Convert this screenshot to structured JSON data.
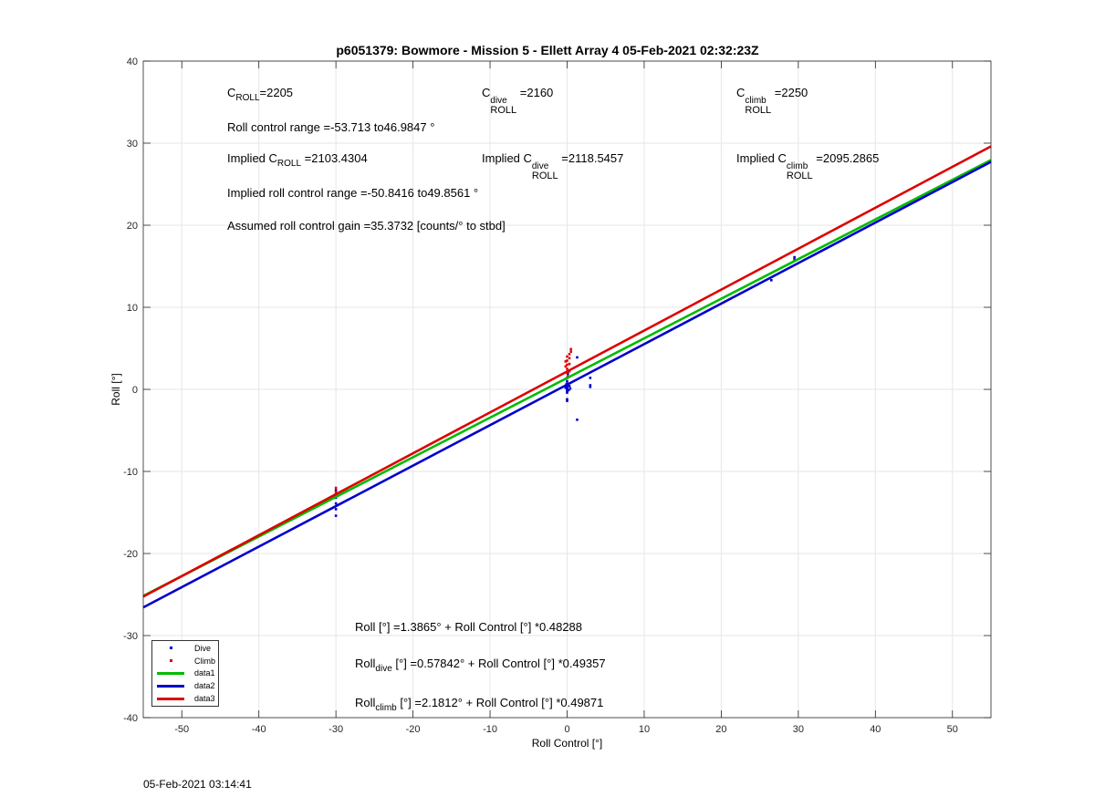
{
  "title": "p6051379: Bowmore - Mission 5 - Ellett Array 4 05-Feb-2021 02:32:23Z",
  "footer_timestamp": "05-Feb-2021 03:14:41",
  "annotations": {
    "c_roll_label": "C",
    "c_roll_sub": "ROLL",
    "c_roll_value": "=2205",
    "c_dive_label": "C",
    "c_dive_sup": "dive",
    "c_dive_sub": "ROLL",
    "c_dive_value": "=2160",
    "c_climb_label": "C",
    "c_climb_sup": "climb",
    "c_climb_sub": "ROLL",
    "c_climb_value": "=2250",
    "roll_control_range": "Roll control range =-53.713 to46.9847 °",
    "implied_c_prefix": "Implied C",
    "implied_c_roll_value": "=2103.4304",
    "implied_c_dive_value": "=2118.5457",
    "implied_c_climb_value": "=2095.2865",
    "implied_range": "Implied roll control range =-50.8416 to49.8561 °",
    "assumed_gain": "Assumed roll control gain =35.3732 [counts/° to stbd]",
    "fit_all": "Roll [°] =1.3865° + Roll Control [°] *0.48288",
    "fit_dive_prefix": "Roll",
    "fit_dive_sub": "dive",
    "fit_dive_rest": " [°] =0.57842° + Roll Control [°] *0.49357",
    "fit_climb_prefix": "Roll",
    "fit_climb_sub": "climb",
    "fit_climb_rest": " [°] =2.1812° + Roll Control [°] *0.49871"
  },
  "chart_data": {
    "type": "scatter",
    "title": "p6051379: Bowmore - Mission 5 - Ellett Array 4 05-Feb-2021 02:32:23Z",
    "xlabel": "Roll Control [°]",
    "ylabel": "Roll [°]",
    "xlim": [
      -55,
      55
    ],
    "ylim": [
      -40,
      40
    ],
    "xticks": [
      -50,
      -40,
      -30,
      -20,
      -10,
      0,
      10,
      20,
      30,
      40,
      50
    ],
    "yticks": [
      -40,
      -30,
      -20,
      -10,
      0,
      10,
      20,
      30,
      40
    ],
    "grid": true,
    "legend_position": "bottom-left",
    "series": [
      {
        "name": "Dive",
        "kind": "points",
        "color": "#0000cc",
        "points": [
          [
            -30,
            -12.3
          ],
          [
            -30,
            -13.2
          ],
          [
            -30,
            -13.9
          ],
          [
            -30,
            -14.6
          ],
          [
            -30,
            -15.4
          ],
          [
            -30,
            -12.8
          ],
          [
            0,
            -0.4
          ],
          [
            0,
            -0.2
          ],
          [
            0,
            0.0
          ],
          [
            0,
            0.1
          ],
          [
            0,
            0.3
          ],
          [
            0,
            0.5
          ],
          [
            0,
            0.7
          ],
          [
            0,
            1.0
          ],
          [
            0,
            1.4
          ],
          [
            0,
            -1.2
          ],
          [
            0,
            -1.4
          ],
          [
            -0.2,
            0.2
          ],
          [
            0.2,
            -0.1
          ],
          [
            0.3,
            0.4
          ],
          [
            0.4,
            0.1
          ],
          [
            -0.1,
            0.6
          ],
          [
            0.1,
            1.9
          ],
          [
            1.3,
            3.9
          ],
          [
            1.3,
            -3.7
          ],
          [
            3,
            1.4
          ],
          [
            3,
            0.5
          ],
          [
            3,
            0.3
          ],
          [
            26.5,
            13.3
          ],
          [
            29.5,
            15.8
          ],
          [
            29.5,
            16.1
          ]
        ]
      },
      {
        "name": "Climb",
        "kind": "points",
        "color": "#dd0000",
        "points": [
          [
            -30,
            -12.0
          ],
          [
            -30,
            -12.5
          ],
          [
            -30,
            -13.0
          ],
          [
            0,
            2.0
          ],
          [
            0,
            2.5
          ],
          [
            0,
            3.0
          ],
          [
            0,
            3.5
          ],
          [
            0,
            4.0
          ],
          [
            0.3,
            2.2
          ],
          [
            0.3,
            3.1
          ],
          [
            0.3,
            3.8
          ],
          [
            0.3,
            4.3
          ],
          [
            0.5,
            4.6
          ],
          [
            0.5,
            4.9
          ],
          [
            -0.2,
            2.8
          ],
          [
            -0.2,
            3.4
          ],
          [
            0.1,
            1.6
          ]
        ]
      },
      {
        "name": "data1",
        "kind": "line",
        "color": "#00bb00",
        "intercept": 1.3865,
        "slope": 0.48288
      },
      {
        "name": "data2",
        "kind": "line",
        "color": "#0000cc",
        "intercept": 0.57842,
        "slope": 0.49357
      },
      {
        "name": "data3",
        "kind": "line",
        "color": "#dd0000",
        "intercept": 2.1812,
        "slope": 0.49871
      }
    ]
  }
}
